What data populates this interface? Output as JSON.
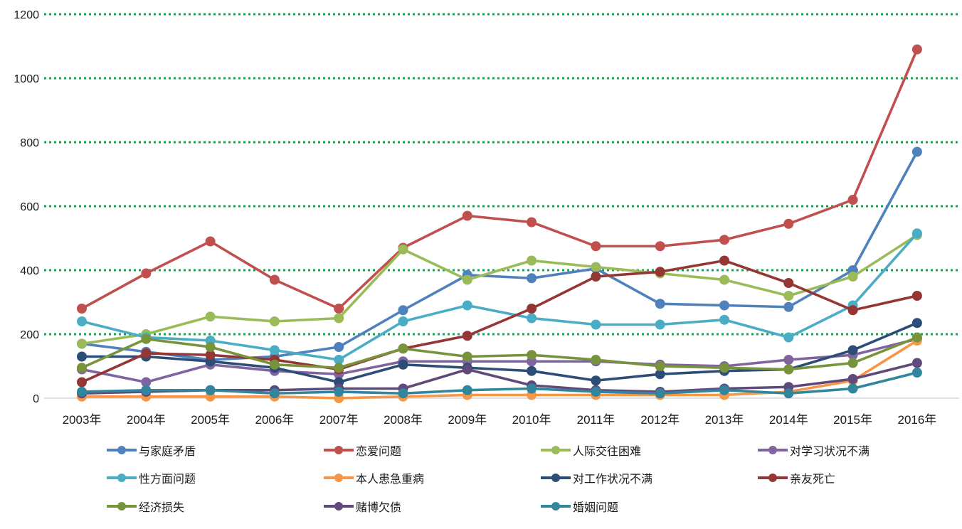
{
  "chart_data": {
    "type": "line",
    "title": "",
    "xlabel": "",
    "ylabel": "",
    "categories": [
      "2003年",
      "2004年",
      "2005年",
      "2006年",
      "2007年",
      "2008年",
      "2009年",
      "2010年",
      "2011年",
      "2012年",
      "2013年",
      "2014年",
      "2015年",
      "2016年"
    ],
    "series": [
      {
        "name": "与家庭矛盾",
        "color": "#4F81BD",
        "values": [
          170,
          145,
          120,
          130,
          160,
          275,
          385,
          375,
          405,
          295,
          290,
          285,
          400,
          770
        ]
      },
      {
        "name": "恋爱问题",
        "color": "#C0504D",
        "values": [
          280,
          390,
          490,
          370,
          280,
          470,
          570,
          550,
          475,
          475,
          495,
          545,
          620,
          1090
        ]
      },
      {
        "name": "人际交往困难",
        "color": "#9BBB59",
        "values": [
          170,
          200,
          255,
          240,
          250,
          465,
          370,
          430,
          410,
          390,
          370,
          320,
          380,
          510
        ]
      },
      {
        "name": "对学习状况不满",
        "color": "#8064A2",
        "values": [
          90,
          50,
          105,
          85,
          75,
          115,
          115,
          115,
          115,
          105,
          100,
          120,
          135,
          185
        ]
      },
      {
        "name": "性方面问题",
        "color": "#4BACC6",
        "values": [
          240,
          190,
          180,
          150,
          120,
          240,
          290,
          250,
          230,
          230,
          245,
          190,
          290,
          515
        ]
      },
      {
        "name": "本人患急重病",
        "color": "#F79646",
        "values": [
          5,
          5,
          5,
          5,
          0,
          5,
          10,
          10,
          10,
          10,
          10,
          20,
          55,
          180
        ]
      },
      {
        "name": "对工作状况不满",
        "color": "#2C4D75",
        "values": [
          130,
          130,
          115,
          95,
          50,
          105,
          95,
          85,
          55,
          75,
          85,
          90,
          150,
          235
        ]
      },
      {
        "name": "亲友死亡",
        "color": "#943634",
        "values": [
          50,
          140,
          135,
          120,
          90,
          155,
          195,
          280,
          380,
          395,
          430,
          360,
          275,
          320
        ]
      },
      {
        "name": "经济损失",
        "color": "#77933C",
        "values": [
          95,
          185,
          160,
          105,
          95,
          155,
          130,
          135,
          120,
          100,
          95,
          90,
          110,
          190
        ]
      },
      {
        "name": "赌博欠债",
        "color": "#604A7B",
        "values": [
          15,
          20,
          25,
          25,
          30,
          30,
          90,
          40,
          25,
          20,
          30,
          35,
          60,
          110
        ]
      },
      {
        "name": "婚姻问题",
        "color": "#31859C",
        "values": [
          20,
          25,
          25,
          15,
          20,
          15,
          25,
          30,
          20,
          15,
          25,
          15,
          30,
          80
        ]
      }
    ],
    "ylim": [
      0,
      1200
    ],
    "ytick_step": 200,
    "ytick_labels": [
      "0",
      "200",
      "400",
      "600",
      "800",
      "1000",
      "1200"
    ],
    "grid": true,
    "gridline_color": "#14A052",
    "gridline_style": "dotted",
    "axis_line_color": "#C9C9C9",
    "tick_label_color": "#1a1a1a",
    "legend_position": "bottom",
    "legend_columns": 4,
    "legend_rows": 3
  }
}
